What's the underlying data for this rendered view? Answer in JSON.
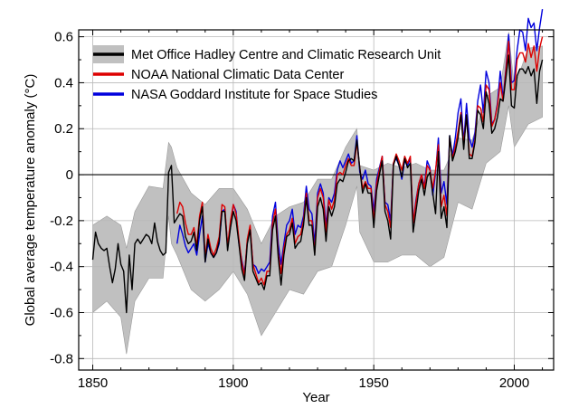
{
  "chart_data": {
    "type": "line",
    "xlabel": "Year",
    "ylabel": "Global average temperature anomaly (°C)",
    "xlim": [
      1845,
      2014
    ],
    "ylim": [
      -0.85,
      0.63
    ],
    "x_ticks": [
      1850,
      1900,
      1950,
      2000
    ],
    "x_tick_labels": [
      "1850",
      "1900",
      "1950",
      "2000"
    ],
    "y_ticks": [
      0.6,
      0.4,
      0.2,
      0,
      -0.2,
      -0.4,
      -0.6,
      -0.8
    ],
    "y_tick_labels": [
      "0.6",
      "0.4",
      "0.2",
      "0",
      "-0.2",
      "-0.4",
      "-0.6",
      "-0.8"
    ],
    "grid": true,
    "legend_position": "top-left",
    "zero_line": true,
    "uncertainty_band": {
      "name": "Met Office Hadley Centre and Climatic Research Unit uncertainty range",
      "color": "#c0c0c0",
      "x": [
        1850,
        1855,
        1860,
        1862,
        1865,
        1870,
        1875,
        1877,
        1878,
        1880,
        1885,
        1890,
        1895,
        1900,
        1905,
        1910,
        1915,
        1920,
        1925,
        1930,
        1935,
        1940,
        1944,
        1945,
        1950,
        1955,
        1960,
        1965,
        1970,
        1975,
        1980,
        1985,
        1990,
        1995,
        1998,
        2000,
        2005,
        2010
      ],
      "upper": [
        -0.22,
        -0.18,
        -0.22,
        -0.32,
        -0.16,
        -0.05,
        -0.06,
        0.14,
        0.12,
        0.03,
        -0.08,
        -0.13,
        -0.06,
        -0.06,
        -0.15,
        -0.3,
        -0.18,
        -0.14,
        -0.12,
        -0.02,
        -0.02,
        0.12,
        0.2,
        0.04,
        0.02,
        0.05,
        0.03,
        0.05,
        0.02,
        0.02,
        0.16,
        0.15,
        0.34,
        0.38,
        0.62,
        0.38,
        0.55,
        0.56
      ],
      "lower": [
        -0.6,
        -0.55,
        -0.62,
        -0.78,
        -0.55,
        -0.45,
        -0.45,
        -0.18,
        -0.3,
        -0.35,
        -0.5,
        -0.55,
        -0.5,
        -0.42,
        -0.52,
        -0.7,
        -0.6,
        -0.5,
        -0.52,
        -0.42,
        -0.4,
        -0.22,
        -0.05,
        -0.25,
        -0.38,
        -0.38,
        -0.35,
        -0.35,
        -0.4,
        -0.36,
        -0.12,
        -0.15,
        0.05,
        0.1,
        0.3,
        0.12,
        0.22,
        0.25
      ]
    },
    "series": [
      {
        "name": "Met Office Hadley Centre and Climatic Research Unit",
        "color": "#000000",
        "x": [
          1850,
          1851,
          1852,
          1853,
          1854,
          1855,
          1856,
          1857,
          1858,
          1859,
          1860,
          1861,
          1862,
          1863,
          1864,
          1865,
          1866,
          1867,
          1868,
          1869,
          1870,
          1871,
          1872,
          1873,
          1874,
          1875,
          1876,
          1877,
          1878,
          1879,
          1880,
          1881,
          1882,
          1883,
          1884,
          1885,
          1886,
          1887,
          1888,
          1889,
          1890,
          1891,
          1892,
          1893,
          1894,
          1895,
          1896,
          1897,
          1898,
          1899,
          1900,
          1901,
          1902,
          1903,
          1904,
          1905,
          1906,
          1907,
          1908,
          1909,
          1910,
          1911,
          1912,
          1913,
          1914,
          1915,
          1916,
          1917,
          1918,
          1919,
          1920,
          1921,
          1922,
          1923,
          1924,
          1925,
          1926,
          1927,
          1928,
          1929,
          1930,
          1931,
          1932,
          1933,
          1934,
          1935,
          1936,
          1937,
          1938,
          1939,
          1940,
          1941,
          1942,
          1943,
          1944,
          1945,
          1946,
          1947,
          1948,
          1949,
          1950,
          1951,
          1952,
          1953,
          1954,
          1955,
          1956,
          1957,
          1958,
          1959,
          1960,
          1961,
          1962,
          1963,
          1964,
          1965,
          1966,
          1967,
          1968,
          1969,
          1970,
          1971,
          1972,
          1973,
          1974,
          1975,
          1976,
          1977,
          1978,
          1979,
          1980,
          1981,
          1982,
          1983,
          1984,
          1985,
          1986,
          1987,
          1988,
          1989,
          1990,
          1991,
          1992,
          1993,
          1994,
          1995,
          1996,
          1997,
          1998,
          1999,
          2000,
          2001,
          2002,
          2003,
          2004,
          2005,
          2006,
          2007,
          2008,
          2009,
          2010
        ],
        "y": [
          -0.37,
          -0.25,
          -0.3,
          -0.32,
          -0.33,
          -0.32,
          -0.4,
          -0.47,
          -0.41,
          -0.3,
          -0.39,
          -0.42,
          -0.6,
          -0.35,
          -0.5,
          -0.3,
          -0.28,
          -0.3,
          -0.28,
          -0.26,
          -0.27,
          -0.3,
          -0.21,
          -0.29,
          -0.33,
          -0.35,
          -0.34,
          0.01,
          0.04,
          -0.21,
          -0.19,
          -0.17,
          -0.18,
          -0.27,
          -0.3,
          -0.29,
          -0.25,
          -0.33,
          -0.2,
          -0.14,
          -0.38,
          -0.28,
          -0.34,
          -0.36,
          -0.34,
          -0.29,
          -0.16,
          -0.16,
          -0.33,
          -0.23,
          -0.16,
          -0.2,
          -0.3,
          -0.41,
          -0.46,
          -0.3,
          -0.24,
          -0.42,
          -0.45,
          -0.48,
          -0.47,
          -0.5,
          -0.44,
          -0.44,
          -0.24,
          -0.18,
          -0.36,
          -0.48,
          -0.35,
          -0.27,
          -0.26,
          -0.21,
          -0.32,
          -0.3,
          -0.29,
          -0.22,
          -0.1,
          -0.22,
          -0.22,
          -0.35,
          -0.14,
          -0.1,
          -0.15,
          -0.29,
          -0.14,
          -0.18,
          -0.14,
          -0.04,
          -0.02,
          -0.03,
          0.01,
          0.06,
          0.07,
          0.06,
          0.15,
          0.03,
          -0.08,
          -0.04,
          -0.08,
          -0.08,
          -0.23,
          -0.07,
          0.0,
          0.06,
          -0.16,
          -0.2,
          -0.28,
          0.04,
          0.08,
          0.04,
          -0.01,
          0.07,
          0.03,
          0.05,
          -0.25,
          -0.16,
          -0.07,
          -0.02,
          -0.09,
          -0.01,
          0.01,
          -0.08,
          -0.17,
          0.1,
          -0.19,
          -0.14,
          -0.23,
          0.17,
          0.06,
          0.1,
          0.16,
          0.26,
          0.11,
          0.26,
          0.07,
          0.07,
          0.14,
          0.28,
          0.26,
          0.2,
          0.36,
          0.31,
          0.18,
          0.2,
          0.25,
          0.33,
          0.32,
          0.42,
          0.52,
          0.3,
          0.29,
          0.43,
          0.46,
          0.46,
          0.44,
          0.47,
          0.43,
          0.46,
          0.31,
          0.45,
          0.5
        ]
      },
      {
        "name": "NOAA National Climatic Data Center",
        "color": "#dd0000",
        "x": [
          1880,
          1881,
          1882,
          1883,
          1884,
          1885,
          1886,
          1887,
          1888,
          1889,
          1890,
          1891,
          1892,
          1893,
          1894,
          1895,
          1896,
          1897,
          1898,
          1899,
          1900,
          1901,
          1902,
          1903,
          1904,
          1905,
          1906,
          1907,
          1908,
          1909,
          1910,
          1911,
          1912,
          1913,
          1914,
          1915,
          1916,
          1917,
          1918,
          1919,
          1920,
          1921,
          1922,
          1923,
          1924,
          1925,
          1926,
          1927,
          1928,
          1929,
          1930,
          1931,
          1932,
          1933,
          1934,
          1935,
          1936,
          1937,
          1938,
          1939,
          1940,
          1941,
          1942,
          1943,
          1944,
          1945,
          1946,
          1947,
          1948,
          1949,
          1950,
          1951,
          1952,
          1953,
          1954,
          1955,
          1956,
          1957,
          1958,
          1959,
          1960,
          1961,
          1962,
          1963,
          1964,
          1965,
          1966,
          1967,
          1968,
          1969,
          1970,
          1971,
          1972,
          1973,
          1974,
          1975,
          1976,
          1977,
          1978,
          1979,
          1980,
          1981,
          1982,
          1983,
          1984,
          1985,
          1986,
          1987,
          1988,
          1989,
          1990,
          1991,
          1992,
          1993,
          1994,
          1995,
          1996,
          1997,
          1998,
          1999,
          2000,
          2001,
          2002,
          2003,
          2004,
          2005,
          2006,
          2007,
          2008,
          2009,
          2010
        ],
        "y": [
          -0.17,
          -0.12,
          -0.14,
          -0.21,
          -0.26,
          -0.26,
          -0.23,
          -0.31,
          -0.18,
          -0.12,
          -0.36,
          -0.26,
          -0.32,
          -0.35,
          -0.32,
          -0.27,
          -0.13,
          -0.14,
          -0.31,
          -0.2,
          -0.13,
          -0.17,
          -0.28,
          -0.38,
          -0.44,
          -0.28,
          -0.22,
          -0.39,
          -0.43,
          -0.47,
          -0.45,
          -0.48,
          -0.42,
          -0.42,
          -0.21,
          -0.15,
          -0.34,
          -0.43,
          -0.32,
          -0.26,
          -0.24,
          -0.19,
          -0.3,
          -0.27,
          -0.26,
          -0.2,
          -0.08,
          -0.2,
          -0.2,
          -0.34,
          -0.1,
          -0.06,
          -0.1,
          -0.25,
          -0.11,
          -0.15,
          -0.11,
          0.0,
          0.01,
          0.0,
          0.04,
          0.07,
          0.04,
          0.04,
          0.14,
          0.03,
          -0.06,
          -0.03,
          -0.06,
          -0.06,
          -0.2,
          -0.04,
          0.02,
          0.08,
          -0.13,
          -0.16,
          -0.23,
          0.05,
          0.09,
          0.06,
          0.02,
          0.08,
          0.05,
          0.08,
          -0.21,
          -0.12,
          -0.04,
          0.0,
          -0.06,
          0.04,
          0.02,
          -0.06,
          0.02,
          0.13,
          -0.14,
          -0.09,
          -0.18,
          0.16,
          0.07,
          0.12,
          0.19,
          0.27,
          0.13,
          0.26,
          0.09,
          0.08,
          0.15,
          0.3,
          0.29,
          0.23,
          0.39,
          0.37,
          0.21,
          0.24,
          0.3,
          0.4,
          0.32,
          0.45,
          0.58,
          0.37,
          0.37,
          0.5,
          0.53,
          0.53,
          0.49,
          0.57,
          0.51,
          0.56,
          0.45,
          0.55,
          0.6
        ]
      },
      {
        "name": "NASA Goddard Institute for Space Studies",
        "color": "#0000dd",
        "x": [
          1880,
          1881,
          1882,
          1883,
          1884,
          1885,
          1886,
          1887,
          1888,
          1889,
          1890,
          1891,
          1892,
          1893,
          1894,
          1895,
          1896,
          1897,
          1898,
          1899,
          1900,
          1901,
          1902,
          1903,
          1904,
          1905,
          1906,
          1907,
          1908,
          1909,
          1910,
          1911,
          1912,
          1913,
          1914,
          1915,
          1916,
          1917,
          1918,
          1919,
          1920,
          1921,
          1922,
          1923,
          1924,
          1925,
          1926,
          1927,
          1928,
          1929,
          1930,
          1931,
          1932,
          1933,
          1934,
          1935,
          1936,
          1937,
          1938,
          1939,
          1940,
          1941,
          1942,
          1943,
          1944,
          1945,
          1946,
          1947,
          1948,
          1949,
          1950,
          1951,
          1952,
          1953,
          1954,
          1955,
          1956,
          1957,
          1958,
          1959,
          1960,
          1961,
          1962,
          1963,
          1964,
          1965,
          1966,
          1967,
          1968,
          1969,
          1970,
          1971,
          1972,
          1973,
          1974,
          1975,
          1976,
          1977,
          1978,
          1979,
          1980,
          1981,
          1982,
          1983,
          1984,
          1985,
          1986,
          1987,
          1988,
          1989,
          1990,
          1991,
          1992,
          1993,
          1994,
          1995,
          1996,
          1997,
          1998,
          1999,
          2000,
          2001,
          2002,
          2003,
          2004,
          2005,
          2006,
          2007,
          2008,
          2009,
          2010
        ],
        "y": [
          -0.3,
          -0.22,
          -0.26,
          -0.31,
          -0.34,
          -0.32,
          -0.3,
          -0.35,
          -0.26,
          -0.18,
          -0.38,
          -0.3,
          -0.34,
          -0.36,
          -0.34,
          -0.3,
          -0.16,
          -0.15,
          -0.31,
          -0.23,
          -0.13,
          -0.16,
          -0.3,
          -0.37,
          -0.43,
          -0.29,
          -0.23,
          -0.39,
          -0.4,
          -0.43,
          -0.41,
          -0.42,
          -0.4,
          -0.38,
          -0.18,
          -0.12,
          -0.3,
          -0.39,
          -0.3,
          -0.22,
          -0.2,
          -0.15,
          -0.26,
          -0.22,
          -0.23,
          -0.18,
          -0.05,
          -0.15,
          -0.17,
          -0.3,
          -0.08,
          -0.04,
          -0.08,
          -0.22,
          -0.1,
          -0.12,
          -0.08,
          0.02,
          0.06,
          0.03,
          0.06,
          0.09,
          0.05,
          0.06,
          0.17,
          0.01,
          -0.02,
          0.02,
          -0.04,
          -0.05,
          -0.16,
          -0.02,
          0.03,
          0.08,
          -0.12,
          -0.13,
          -0.2,
          0.05,
          0.07,
          0.04,
          -0.02,
          0.06,
          0.04,
          0.07,
          -0.21,
          -0.11,
          -0.04,
          0.0,
          -0.05,
          0.06,
          0.03,
          -0.09,
          0.01,
          0.16,
          -0.08,
          -0.03,
          -0.13,
          0.17,
          0.08,
          0.16,
          0.27,
          0.33,
          0.14,
          0.31,
          0.16,
          0.12,
          0.18,
          0.32,
          0.39,
          0.27,
          0.45,
          0.4,
          0.22,
          0.24,
          0.31,
          0.45,
          0.33,
          0.46,
          0.61,
          0.4,
          0.41,
          0.54,
          0.63,
          0.62,
          0.54,
          0.68,
          0.64,
          0.66,
          0.54,
          0.64,
          0.72
        ]
      }
    ]
  }
}
